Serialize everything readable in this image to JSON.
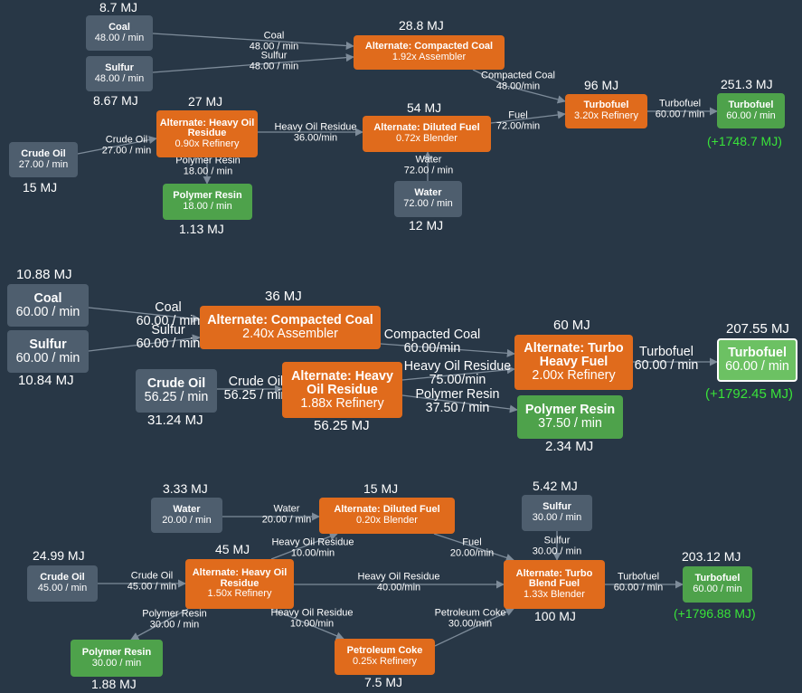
{
  "colors": {
    "background": "#283746",
    "raw": "#4e5e6e",
    "recipe": "#e06b1c",
    "product": "#4ea24b",
    "surplus": "#39e339",
    "edge": "#7d8b99"
  },
  "diagrams": [
    {
      "nodes": [
        {
          "id": "coal",
          "kind": "raw",
          "title": "Coal",
          "sub": "48.00 / min",
          "mj": "8.7 MJ"
        },
        {
          "id": "sulfur",
          "kind": "raw",
          "title": "Sulfur",
          "sub": "48.00 / min",
          "mj": "8.67 MJ"
        },
        {
          "id": "compacted",
          "kind": "recipe",
          "title": "Alternate: Compacted Coal",
          "sub": "1.92x Assembler",
          "mj": "28.8 MJ"
        },
        {
          "id": "heavy",
          "kind": "recipe",
          "title": "Alternate: Heavy Oil Residue",
          "sub": "0.90x Refinery",
          "mj": "27 MJ"
        },
        {
          "id": "crude",
          "kind": "raw",
          "title": "Crude Oil",
          "sub": "27.00 / min",
          "mj": "15 MJ"
        },
        {
          "id": "diluted",
          "kind": "recipe",
          "title": "Alternate: Diluted Fuel",
          "sub": "0.72x Blender",
          "mj": "54 MJ"
        },
        {
          "id": "polymer",
          "kind": "product",
          "title": "Polymer Resin",
          "sub": "18.00 / min",
          "mj": "1.13 MJ"
        },
        {
          "id": "water",
          "kind": "raw",
          "title": "Water",
          "sub": "72.00 / min",
          "mj": "12 MJ"
        },
        {
          "id": "turbo",
          "kind": "recipe",
          "title": "Turbofuel",
          "sub": "3.20x Refinery",
          "mj": "96 MJ"
        },
        {
          "id": "out",
          "kind": "product",
          "title": "Turbofuel",
          "sub": "60.00 / min",
          "mj": "251.3 MJ",
          "surplus": "(+1748.7 MJ)"
        }
      ],
      "edges": [
        {
          "from": "coal",
          "to": "compacted",
          "label": "Coal",
          "rate": "48.00 / min"
        },
        {
          "from": "sulfur",
          "to": "compacted",
          "label": "Sulfur",
          "rate": "48.00 / min"
        },
        {
          "from": "compacted",
          "to": "turbo",
          "label": "Compacted Coal",
          "rate": "48.00/min"
        },
        {
          "from": "crude",
          "to": "heavy",
          "label": "Crude Oil",
          "rate": "27.00 / min"
        },
        {
          "from": "heavy",
          "to": "diluted",
          "label": "Heavy Oil Residue",
          "rate": "36.00/min"
        },
        {
          "from": "heavy",
          "to": "polymer",
          "label": "Polymer Resin",
          "rate": "18.00 / min"
        },
        {
          "from": "water",
          "to": "diluted",
          "label": "Water",
          "rate": "72.00 / min"
        },
        {
          "from": "diluted",
          "to": "turbo",
          "label": "Fuel",
          "rate": "72.00/min"
        },
        {
          "from": "turbo",
          "to": "out",
          "label": "Turbofuel",
          "rate": "60.00 / min"
        }
      ]
    },
    {
      "nodes": [
        {
          "id": "coal",
          "kind": "raw",
          "title": "Coal",
          "sub": "60.00 / min",
          "mj": "10.88 MJ"
        },
        {
          "id": "sulfur",
          "kind": "raw",
          "title": "Sulfur",
          "sub": "60.00 / min",
          "mj": "10.84 MJ"
        },
        {
          "id": "compacted",
          "kind": "recipe",
          "title": "Alternate: Compacted Coal",
          "sub": "2.40x Assembler",
          "mj": "36 MJ"
        },
        {
          "id": "crude",
          "kind": "raw",
          "title": "Crude Oil",
          "sub": "56.25 / min",
          "mj": "31.24 MJ"
        },
        {
          "id": "heavy",
          "kind": "recipe",
          "title": "Alternate: Heavy Oil Residue",
          "sub": "1.88x Refinery",
          "mj": "56.25 MJ"
        },
        {
          "id": "turbo",
          "kind": "recipe",
          "title": "Alternate: Turbo Heavy Fuel",
          "sub": "2.00x Refinery",
          "mj": "60 MJ"
        },
        {
          "id": "polymer",
          "kind": "product",
          "title": "Polymer Resin",
          "sub": "37.50 / min",
          "mj": "2.34 MJ"
        },
        {
          "id": "out",
          "kind": "product",
          "title": "Turbofuel",
          "sub": "60.00 / min",
          "mj": "207.55 MJ",
          "surplus": "(+1792.45 MJ)",
          "highlight": true
        }
      ],
      "edges": [
        {
          "from": "coal",
          "to": "compacted",
          "label": "Coal",
          "rate": "60.00 / min"
        },
        {
          "from": "sulfur",
          "to": "compacted",
          "label": "Sulfur",
          "rate": "60.00 / min"
        },
        {
          "from": "compacted",
          "to": "turbo",
          "label": "Compacted Coal",
          "rate": "60.00/min"
        },
        {
          "from": "crude",
          "to": "heavy",
          "label": "Crude Oil",
          "rate": "56.25 / min"
        },
        {
          "from": "heavy",
          "to": "turbo",
          "label": "Heavy Oil Residue",
          "rate": "75.00/min"
        },
        {
          "from": "heavy",
          "to": "polymer",
          "label": "Polymer Resin",
          "rate": "37.50 / min"
        },
        {
          "from": "turbo",
          "to": "out",
          "label": "Turbofuel",
          "rate": "60.00 / min"
        }
      ]
    },
    {
      "nodes": [
        {
          "id": "water",
          "kind": "raw",
          "title": "Water",
          "sub": "20.00 / min",
          "mj": "3.33 MJ"
        },
        {
          "id": "diluted",
          "kind": "recipe",
          "title": "Alternate: Diluted Fuel",
          "sub": "0.20x Blender",
          "mj": "15 MJ"
        },
        {
          "id": "sulfur",
          "kind": "raw",
          "title": "Sulfur",
          "sub": "30.00 / min",
          "mj": "5.42 MJ"
        },
        {
          "id": "crude",
          "kind": "raw",
          "title": "Crude Oil",
          "sub": "45.00 / min",
          "mj": "24.99 MJ"
        },
        {
          "id": "heavy",
          "kind": "recipe",
          "title": "Alternate: Heavy Oil Residue",
          "sub": "1.50x Refinery",
          "mj": "45 MJ"
        },
        {
          "id": "blend",
          "kind": "recipe",
          "title": "Alternate: Turbo Blend Fuel",
          "sub": "1.33x Blender",
          "mj": "100 MJ"
        },
        {
          "id": "out",
          "kind": "product",
          "title": "Turbofuel",
          "sub": "60.00 / min",
          "mj": "203.12 MJ",
          "surplus": "(+1796.88 MJ)"
        },
        {
          "id": "polymer",
          "kind": "product",
          "title": "Polymer Resin",
          "sub": "30.00 / min",
          "mj": "1.88 MJ"
        },
        {
          "id": "coke",
          "kind": "recipe",
          "title": "Petroleum Coke",
          "sub": "0.25x Refinery",
          "mj": "7.5 MJ"
        }
      ],
      "edges": [
        {
          "from": "water",
          "to": "diluted",
          "label": "Water",
          "rate": "20.00 / min"
        },
        {
          "from": "heavy",
          "to": "diluted",
          "label": "Heavy Oil Residue",
          "rate": "10.00/min"
        },
        {
          "from": "diluted",
          "to": "blend",
          "label": "Fuel",
          "rate": "20.00/min"
        },
        {
          "from": "sulfur",
          "to": "blend",
          "label": "Sulfur",
          "rate": "30.00 / min"
        },
        {
          "from": "crude",
          "to": "heavy",
          "label": "Crude Oil",
          "rate": "45.00 / min"
        },
        {
          "from": "heavy",
          "to": "blend",
          "label": "Heavy Oil Residue",
          "rate": "40.00/min"
        },
        {
          "from": "heavy",
          "to": "polymer",
          "label": "Polymer Resin",
          "rate": "30.00 / min"
        },
        {
          "from": "heavy",
          "to": "coke",
          "label": "Heavy Oil Residue",
          "rate": "10.00/min"
        },
        {
          "from": "coke",
          "to": "blend",
          "label": "Petroleum Coke",
          "rate": "30.00/min"
        },
        {
          "from": "blend",
          "to": "out",
          "label": "Turbofuel",
          "rate": "60.00 / min"
        }
      ]
    }
  ]
}
